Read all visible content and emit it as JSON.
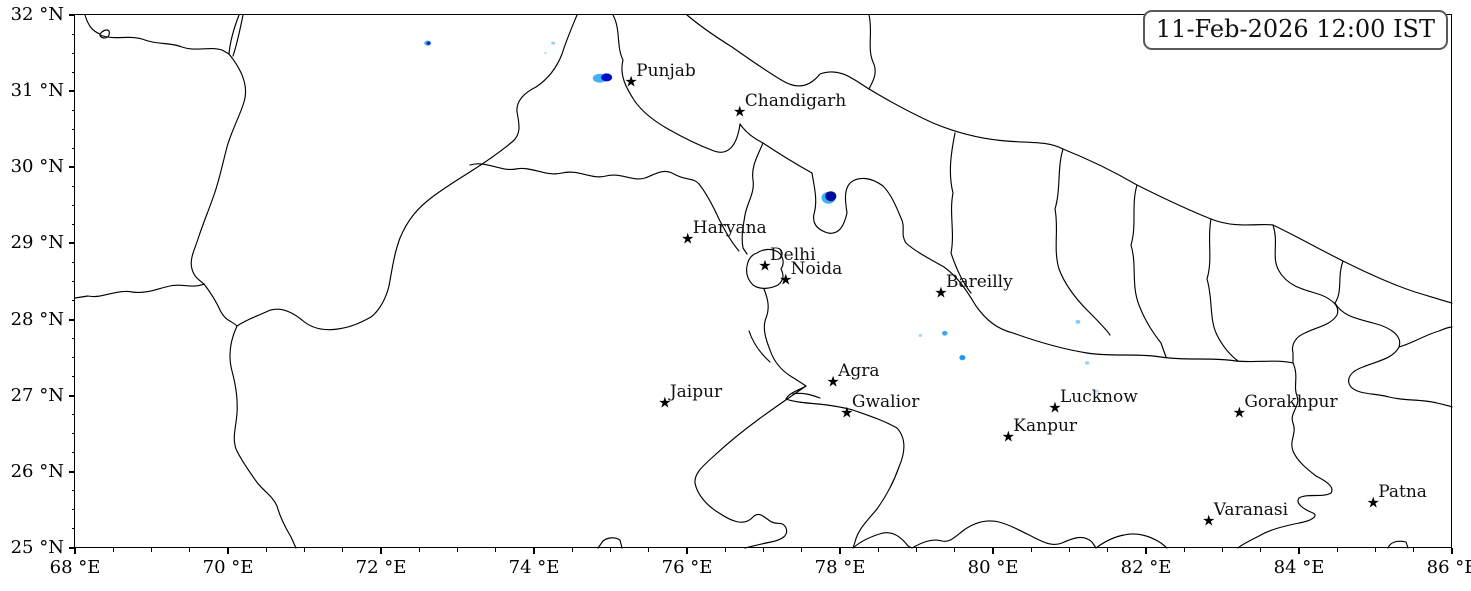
{
  "figure": {
    "timestamp_label": "11-Feb-2026 12:00 IST"
  },
  "map": {
    "extent": {
      "lon_min": 68,
      "lon_max": 86,
      "lat_min": 25,
      "lat_max": 32
    },
    "x_axis": {
      "minor_step": 0.5,
      "major_ticks": [
        {
          "value": 68,
          "label": "68 °E"
        },
        {
          "value": 70,
          "label": "70 °E"
        },
        {
          "value": 72,
          "label": "72 °E"
        },
        {
          "value": 74,
          "label": "74 °E"
        },
        {
          "value": 76,
          "label": "76 °E"
        },
        {
          "value": 78,
          "label": "78 °E"
        },
        {
          "value": 80,
          "label": "80 °E"
        },
        {
          "value": 82,
          "label": "82 °E"
        },
        {
          "value": 84,
          "label": "84 °E"
        },
        {
          "value": 86,
          "label": "86 °E"
        }
      ]
    },
    "y_axis": {
      "minor_step": 0.25,
      "major_ticks": [
        {
          "value": 25,
          "label": "25 °N"
        },
        {
          "value": 26,
          "label": "26 °N"
        },
        {
          "value": 27,
          "label": "27 °N"
        },
        {
          "value": 28,
          "label": "28 °N"
        },
        {
          "value": 29,
          "label": "29 °N"
        },
        {
          "value": 30,
          "label": "30 °N"
        },
        {
          "value": 31,
          "label": "31 °N"
        },
        {
          "value": 32,
          "label": "32 °N"
        }
      ]
    },
    "cities": [
      {
        "name": "Punjab",
        "lon": 75.27,
        "lat": 31.12
      },
      {
        "name": "Chandigarh",
        "lon": 76.69,
        "lat": 30.72
      },
      {
        "name": "Haryana",
        "lon": 76.01,
        "lat": 29.06
      },
      {
        "name": "Delhi",
        "lon": 77.02,
        "lat": 28.7
      },
      {
        "name": "Noida",
        "lon": 77.29,
        "lat": 28.52
      },
      {
        "name": "Bareilly",
        "lon": 79.32,
        "lat": 28.35
      },
      {
        "name": "Agra",
        "lon": 77.91,
        "lat": 27.18
      },
      {
        "name": "Jaipur",
        "lon": 75.71,
        "lat": 26.9
      },
      {
        "name": "Gwalior",
        "lon": 78.09,
        "lat": 26.77
      },
      {
        "name": "Lucknow",
        "lon": 80.81,
        "lat": 26.84
      },
      {
        "name": "Kanpur",
        "lon": 80.2,
        "lat": 26.46
      },
      {
        "name": "Gorakhpur",
        "lon": 83.22,
        "lat": 26.77
      },
      {
        "name": "Varanasi",
        "lon": 82.82,
        "lat": 25.35
      },
      {
        "name": "Patna",
        "lon": 84.97,
        "lat": 25.59
      }
    ],
    "radar_echoes": [
      {
        "lon": 74.86,
        "lat": 31.17,
        "rx": 7.0,
        "ry": 4.5,
        "color": "#45b1f2"
      },
      {
        "lon": 74.95,
        "lat": 31.18,
        "rx": 5.5,
        "ry": 4.0,
        "color": "#0010c8"
      },
      {
        "lon": 72.61,
        "lat": 31.63,
        "rx": 3.5,
        "ry": 2.5,
        "color": "#5ab0f0"
      },
      {
        "lon": 72.62,
        "lat": 31.63,
        "rx": 2.0,
        "ry": 1.8,
        "color": "#1030c0"
      },
      {
        "lon": 74.25,
        "lat": 31.63,
        "rx": 2.0,
        "ry": 1.5,
        "color": "#8ecff5"
      },
      {
        "lon": 74.15,
        "lat": 31.5,
        "rx": 1.5,
        "ry": 1.2,
        "color": "#c5e6fa"
      },
      {
        "lon": 77.85,
        "lat": 29.6,
        "rx": 7.0,
        "ry": 6.0,
        "color": "#3db4f0"
      },
      {
        "lon": 77.88,
        "lat": 29.62,
        "rx": 5.5,
        "ry": 5.0,
        "color": "#000d9b"
      },
      {
        "lon": 79.37,
        "lat": 27.82,
        "rx": 2.8,
        "ry": 2.4,
        "color": "#41a6ee"
      },
      {
        "lon": 79.05,
        "lat": 27.79,
        "rx": 1.8,
        "ry": 1.5,
        "color": "#a7d6f6"
      },
      {
        "lon": 79.6,
        "lat": 27.5,
        "rx": 3.0,
        "ry": 2.6,
        "color": "#2196f0"
      },
      {
        "lon": 81.11,
        "lat": 27.97,
        "rx": 2.5,
        "ry": 2.0,
        "color": "#86c8f3"
      },
      {
        "lon": 81.23,
        "lat": 27.43,
        "rx": 2.2,
        "ry": 1.8,
        "color": "#9bd2f7"
      },
      {
        "lon": 81.36,
        "lat": 27.06,
        "rx": 1.8,
        "ry": 1.5,
        "color": "#badff8"
      }
    ],
    "boundaries": {
      "stroke": "#000000",
      "stroke_width": 1.15,
      "paths": [
        "M85,15 C88,25 92,31 100,34 C104,29 111,28 109,35 C107,40 99,38 100,34",
        "M100,35 C115,41 130,34 145,40 C158,45 170,42 182,47 C196,52 210,46 222,50 L229,54",
        "M229,54 C230,42 234,28 239,15",
        "M243,15 C240,30 237,44 233,56",
        "M229,54 C242,70 249,86 244,102 C239,118 231,132 227,147 C223,162 220,177 215,192 C210,207 204,221 199,236 C195,249 189,259 192,269 C194,277 199,280 204,284",
        "M204,284 C192,289 181,283 170,286 C156,289 147,294 132,292 C116,289 102,299 88,296 L75,298",
        "M204,284 C211,293 216,301 221,312 C226,321 232,321 237,326",
        "M237,326 C230,341 228,356 232,371 C236,386 238,399 237,413 C236,428 232,437 236,449 C241,460 249,471 256,481 C263,491 272,495 277,506 C280,517 285,527 291,537 L296,548",
        "M237,326 C247,319 258,316 268,311 C280,306 292,312 302,320 C312,329 324,331 338,329 C352,327 362,322 371,317 C380,310 386,298 389,286 C392,270 394,254 400,238 C408,219 418,208 431,198 C444,188 459,179 473,170 C487,161 500,152 512,142 C522,134 519,123 517,112 C516,101 524,93 536,87 C548,79 557,67 562,54 C566,41 572,27 577,15",
        "M470,165 C486,160 500,172 516,169 C532,166 546,177 562,173 C578,169 592,180 606,176 C620,172 633,182 645,178 C656,174 663,168 674,174 C686,181 693,177 699,184 C707,194 713,206 719,219 C725,231 732,243 739,251",
        "M613,15 C621,30 616,46 623,60 C619,76 627,89 634,100 C642,112 654,121 668,129 C682,137 698,145 714,151 C728,156 737,146 740,124 C746,133 755,139 763,143 C778,153 794,163 812,173",
        "M687,15 C700,26 716,37 732,47 C749,59 766,71 783,81 C800,91 812,84 820,74 C840,67 853,79 869,89 C889,101 911,113 933,123 C957,133 981,139 1006,141 C1030,143 1048,141 1063,149 C1088,159 1113,171 1137,185 C1161,197 1186,209 1211,219 C1236,229 1259,223 1273,225 C1296,236 1319,249 1343,261 C1367,273 1391,284 1415,292 C1435,298 1448,302 1452,303",
        "M869,15 C873,32 867,48 873,62 C879,74 871,84 869,89",
        "M812,173 C814,186 818,200 814,214 C812,224 818,230 828,233 C839,235 844,226 847,213 C845,200 844,190 850,183 C858,176 871,177 883,186 C891,194 896,206 901,218 C906,228 900,234 906,243 C916,252 930,259 944,267 C958,277 967,291 976,306 C986,320 997,329 1013,333",
        "M955,133 C951,153 948,173 953,193 C949,213 955,233 951,253 C957,271 963,283 971,293",
        "M1063,149 C1057,169 1061,189 1055,209 C1059,229 1053,249 1059,269 C1065,285 1076,299 1088,311 C1098,321 1106,329 1110,335",
        "M1013,333 C1038,342 1062,349 1087,353 C1112,357 1136,353 1161,357 C1186,361 1211,357 1236,361 C1256,363 1276,359 1293,363",
        "M1137,185 C1131,205 1137,225 1131,245 C1137,265 1131,285 1139,305 C1145,321 1153,333 1161,343 L1166,357",
        "M1211,219 C1207,239 1213,259 1207,279 C1213,299 1209,319 1217,335 C1223,347 1230,355 1238,361",
        "M1273,225 C1279,243 1271,257 1279,271 C1287,285 1301,289 1315,293 C1329,297 1341,305 1337,315 C1331,325 1317,327 1305,333 C1295,337 1291,345 1293,353 L1293,363",
        "M1343,261 C1337,277 1343,291 1335,303 C1343,317 1359,319 1373,323 C1389,327 1403,335 1399,347 C1393,359 1377,361 1363,367 C1351,371 1345,379 1351,387 C1359,395 1375,393 1389,397 C1405,401 1421,399 1437,403 C1445,405 1450,406 1452,407",
        "M1399,347 C1413,343 1425,335 1439,331 C1446,328 1450,327 1452,327",
        "M763,143 C757,157 751,167 753,180 C755,193 747,203 745,215 C743,227 741,237 743,248 L747,254",
        "M757,253 C763,249 771,248 778,252 C783,256 785,263 781,269 C784,275 784,280 778,285 C770,289 760,290 753,285 C747,279 745,271 748,262 C750,257 753,254 757,253",
        "M764,289 C768,299 770,308 766,318 C762,328 766,340 770,350 C774,362 782,371 792,377 C800,382 806,386 806,386 C797,391 789,393 786,399 C794,402 806,403 818,404 C830,405 841,407 853,410 C867,415 883,420 897,428 C907,439 905,453 899,467 C894,481 887,495 877,509 C868,520 858,529 855,542 L853,548",
        "M749,331 C753,343 760,353 770,362",
        "M806,386 C790,397 774,408 759,419 C744,430 729,442 715,455 C704,465 694,473 695,483 C697,494 706,505 719,513 C731,521 744,527 753,517 C759,511 764,517 770,521 C777,526 782,520 786,528 C789,536 781,540 771,542 C760,544 750,547 745,548",
        "M793,394 C803,392 812,395 820,398",
        "M853,548 C861,541 872,536 883,533 C894,531 902,538 908,546 L912,548 C921,543 931,538 942,541 C950,543 956,536 964,530 C974,523 986,519 999,522 C1010,525 1021,531 1033,537 C1043,542 1052,547 1062,543 C1073,538 1083,534 1092,542 L1096,548",
        "M1096,548 C1104,542 1113,537 1124,535 C1137,532 1150,536 1161,543 L1167,548",
        "M1293,363 C1299,376 1293,386 1297,396 C1301,406 1289,413 1293,423 C1297,433 1289,441 1293,451 C1297,461 1307,469 1316,476 C1326,481 1335,487 1331,493 C1323,498 1307,493 1299,498 C1295,503 1303,509 1313,513 C1319,516 1311,521 1299,523 C1285,526 1271,529 1259,536 C1249,541 1241,545 1238,548",
        "M598,548 L603,541 C608,537 615,537 620,540 L622,548",
        "M1388,548 C1390,542 1398,540 1406,542 L1408,548"
      ]
    }
  }
}
